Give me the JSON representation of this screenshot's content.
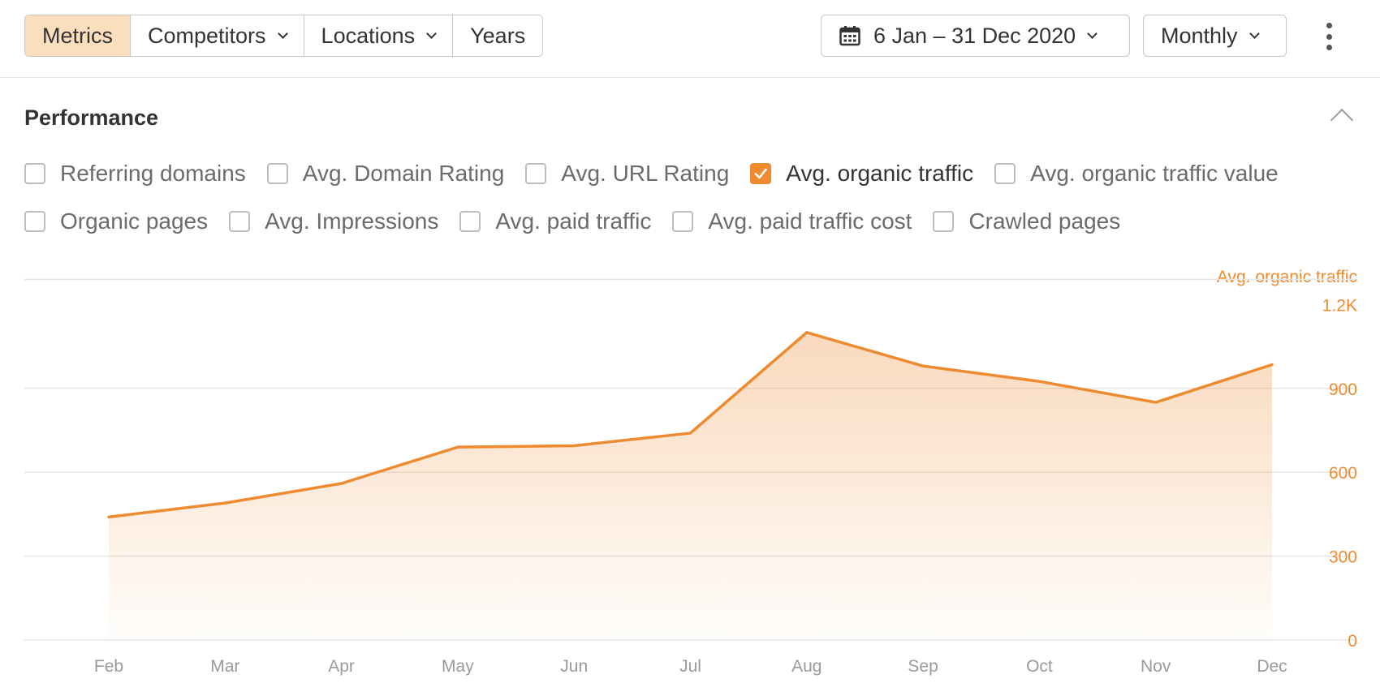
{
  "toolbar": {
    "segments": [
      "Metrics",
      "Competitors",
      "Locations",
      "Years"
    ],
    "date_range": "6 Jan – 31 Dec 2020",
    "period": "Monthly"
  },
  "performance": {
    "title": "Performance",
    "row1": [
      {
        "label": "Referring domains",
        "checked": false
      },
      {
        "label": "Avg. Domain Rating",
        "checked": false
      },
      {
        "label": "Avg. URL Rating",
        "checked": false
      },
      {
        "label": "Avg. organic traffic",
        "checked": true
      },
      {
        "label": "Avg. organic traffic value",
        "checked": false
      }
    ],
    "row2": [
      {
        "label": "Organic pages",
        "checked": false
      },
      {
        "label": "Avg. Impressions",
        "checked": false
      },
      {
        "label": "Avg. paid traffic",
        "checked": false
      },
      {
        "label": "Avg. paid traffic cost",
        "checked": false
      },
      {
        "label": "Crawled pages",
        "checked": false
      }
    ]
  },
  "colors": {
    "accent": "#ee8a2f",
    "active_segment": "#fbdfbd",
    "grid": "#e6e6e6",
    "tick_text": "#9a9a9a"
  },
  "chart_data": {
    "type": "area",
    "series_label": "Avg. organic traffic",
    "categories": [
      "Feb",
      "Mar",
      "Apr",
      "May",
      "Jun",
      "Jul",
      "Aug",
      "Sep",
      "Oct",
      "Nov",
      "Dec"
    ],
    "series": [
      {
        "values": [
          440,
          490,
          560,
          690,
          695,
          740,
          1100,
          980,
          925,
          850,
          985
        ]
      }
    ],
    "y_ticks": [
      "1.2K",
      "900",
      "600",
      "300",
      "0"
    ],
    "y_tick_values": [
      1200,
      900,
      600,
      300,
      0
    ],
    "ylim": [
      0,
      1200
    ],
    "y_axis_position": "right",
    "grid": true
  }
}
